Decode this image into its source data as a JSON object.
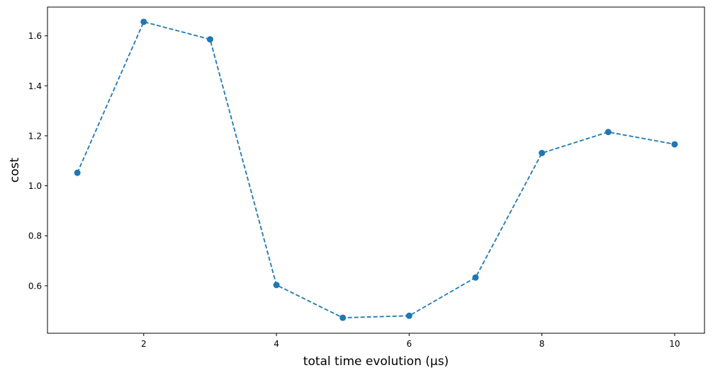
{
  "chart_data": {
    "type": "line",
    "title": "",
    "xlabel": "total time evolution (µs)",
    "ylabel": "cost",
    "xlim": [
      0.55,
      10.45
    ],
    "ylim": [
      0.41,
      1.715
    ],
    "xticks": [
      2,
      4,
      6,
      8,
      10
    ],
    "yticks": [
      0.6,
      0.8,
      1.0,
      1.2,
      1.4,
      1.6
    ],
    "xtick_labels": [
      "2",
      "4",
      "6",
      "8",
      "10"
    ],
    "ytick_labels": [
      "0.6",
      "0.8",
      "1.0",
      "1.2",
      "1.4",
      "1.6"
    ],
    "grid": false,
    "legend": "none",
    "series": [
      {
        "color": "#1f77b4",
        "line_style": "dashed",
        "marker": "circle",
        "x": [
          1,
          2,
          3,
          4,
          5,
          6,
          7,
          8,
          9,
          10
        ],
        "y": [
          1.052,
          1.656,
          1.586,
          0.603,
          0.472,
          0.48,
          0.633,
          1.131,
          1.215,
          1.166
        ]
      }
    ]
  }
}
